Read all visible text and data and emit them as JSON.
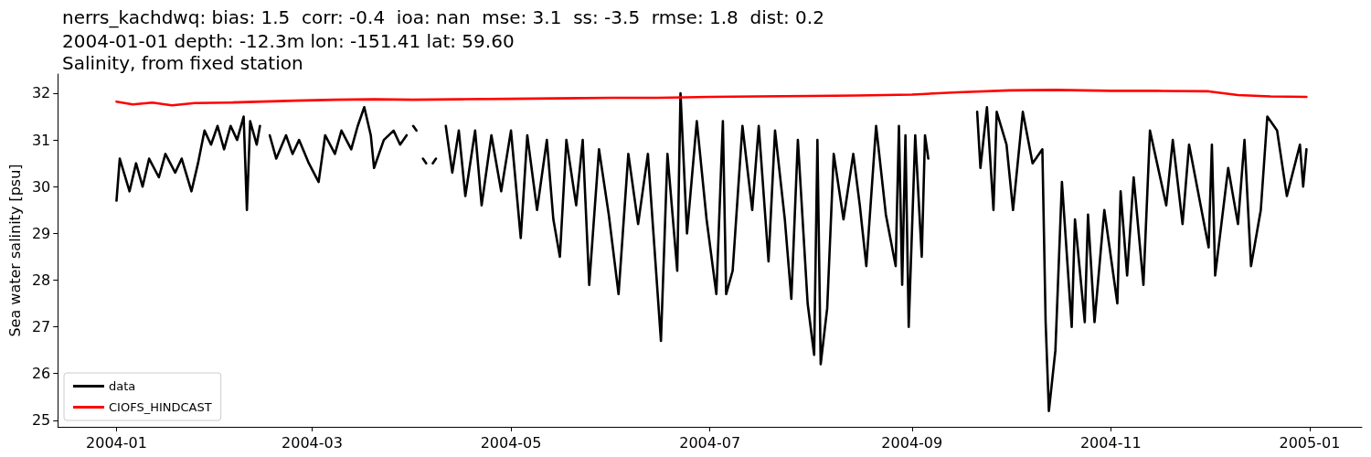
{
  "chart_data": {
    "type": "line",
    "title": "nerrs_kachdwq: bias: 1.5  corr: -0.4  ioa: nan  mse: 3.1  ss: -3.5  rmse: 1.8  dist: 0.2",
    "subtitle": "2004-01-01 depth: -12.3m lon: -151.41 lat: 59.60\nSalinity, from fixed station",
    "ylabel": "Sea water salinity [psu]",
    "xlim": [
      "2003-12-14",
      "2005-01-17"
    ],
    "xticks": [
      {
        "value": "2004-01-01",
        "label": "2004-01"
      },
      {
        "value": "2004-03-01",
        "label": "2004-03"
      },
      {
        "value": "2004-05-01",
        "label": "2004-05"
      },
      {
        "value": "2004-07-01",
        "label": "2004-07"
      },
      {
        "value": "2004-09-01",
        "label": "2004-09"
      },
      {
        "value": "2004-11-01",
        "label": "2004-11"
      },
      {
        "value": "2005-01-01",
        "label": "2005-01"
      }
    ],
    "ylim": [
      24.86,
      32.41
    ],
    "yticks": [
      25,
      26,
      27,
      28,
      29,
      30,
      31,
      32
    ],
    "grid": false,
    "legend": "bottom left",
    "marker": "none",
    "line_style": "solid",
    "series": [
      {
        "name": "data",
        "color": "#000000",
        "x": [
          "2004-01-01",
          "2004-01-02",
          "2004-01-05",
          "2004-01-07",
          "2004-01-09",
          "2004-01-11",
          "2004-01-14",
          "2004-01-16",
          "2004-01-19",
          "2004-01-21",
          "2004-01-24",
          "2004-01-26",
          "2004-01-28",
          "2004-01-30",
          "2004-02-01",
          "2004-02-03",
          "2004-02-05",
          "2004-02-07",
          "2004-02-09",
          "2004-02-10",
          "2004-02-11",
          "2004-02-13",
          "2004-02-14",
          "2004-02-15",
          "2004-02-17",
          "2004-02-19",
          "2004-02-22",
          "2004-02-24",
          "2004-02-26",
          "2004-02-29",
          "2004-03-03",
          "2004-03-05",
          "2004-03-08",
          "2004-03-10",
          "2004-03-13",
          "2004-03-15",
          "2004-03-17",
          "2004-03-19",
          "2004-03-20",
          "2004-03-23",
          "2004-03-26",
          "2004-03-28",
          "2004-03-30",
          "2004-03-31",
          "2004-04-01",
          "2004-04-02",
          "2004-04-03",
          "2004-04-04",
          "2004-04-05",
          "2004-04-06",
          "2004-04-07",
          "2004-04-08",
          "2004-04-09",
          "2004-04-11",
          "2004-04-13",
          "2004-04-15",
          "2004-04-17",
          "2004-04-20",
          "2004-04-22",
          "2004-04-25",
          "2004-04-28",
          "2004-05-01",
          "2004-05-04",
          "2004-05-06",
          "2004-05-09",
          "2004-05-12",
          "2004-05-14",
          "2004-05-16",
          "2004-05-18",
          "2004-05-21",
          "2004-05-23",
          "2004-05-25",
          "2004-05-28",
          "2004-05-31",
          "2004-06-03",
          "2004-06-06",
          "2004-06-09",
          "2004-06-12",
          "2004-06-14",
          "2004-06-16",
          "2004-06-18",
          "2004-06-21",
          "2004-06-22",
          "2004-06-24",
          "2004-06-27",
          "2004-06-30",
          "2004-07-03",
          "2004-07-05",
          "2004-07-06",
          "2004-07-08",
          "2004-07-11",
          "2004-07-14",
          "2004-07-16",
          "2004-07-19",
          "2004-07-21",
          "2004-07-24",
          "2004-07-26",
          "2004-07-28",
          "2004-07-31",
          "2004-08-02",
          "2004-08-03",
          "2004-08-04",
          "2004-08-06",
          "2004-08-08",
          "2004-08-11",
          "2004-08-14",
          "2004-08-16",
          "2004-08-18",
          "2004-08-21",
          "2004-08-24",
          "2004-08-27",
          "2004-08-28",
          "2004-08-29",
          "2004-08-30",
          "2004-08-31",
          "2004-09-02",
          "2004-09-04",
          "2004-09-05",
          "2004-09-06",
          "2004-09-14",
          "2004-09-21",
          "2004-09-22",
          "2004-09-24",
          "2004-09-26",
          "2004-09-27",
          "2004-09-30",
          "2004-10-02",
          "2004-10-05",
          "2004-10-08",
          "2004-10-11",
          "2004-10-12",
          "2004-10-13",
          "2004-10-15",
          "2004-10-17",
          "2004-10-20",
          "2004-10-21",
          "2004-10-24",
          "2004-10-25",
          "2004-10-27",
          "2004-10-30",
          "2004-11-03",
          "2004-11-04",
          "2004-11-06",
          "2004-11-08",
          "2004-11-11",
          "2004-11-13",
          "2004-11-18",
          "2004-11-20",
          "2004-11-23",
          "2004-11-25",
          "2004-12-01",
          "2004-12-02",
          "2004-12-03",
          "2004-12-07",
          "2004-12-10",
          "2004-12-12",
          "2004-12-14",
          "2004-12-17",
          "2004-12-19",
          "2004-12-22",
          "2004-12-25",
          "2004-12-29",
          "2004-12-30",
          "2004-12-31"
        ],
        "values": [
          29.7,
          30.6,
          29.9,
          30.5,
          30.0,
          30.6,
          30.2,
          30.7,
          30.3,
          30.6,
          29.9,
          30.5,
          31.2,
          30.9,
          31.3,
          30.8,
          31.3,
          31.0,
          31.5,
          29.5,
          31.4,
          30.9,
          31.3,
          null,
          31.1,
          30.6,
          31.1,
          30.7,
          31.0,
          30.5,
          30.1,
          31.1,
          30.7,
          31.2,
          30.8,
          31.3,
          31.7,
          31.1,
          30.4,
          31.0,
          31.2,
          30.9,
          31.1,
          null,
          31.3,
          31.2,
          null,
          30.6,
          30.5,
          null,
          30.5,
          30.6,
          null,
          31.3,
          30.3,
          31.2,
          29.8,
          31.2,
          29.6,
          31.1,
          29.9,
          31.2,
          28.9,
          31.1,
          29.5,
          31.0,
          29.3,
          28.5,
          31.0,
          29.6,
          31.0,
          27.9,
          30.8,
          29.4,
          27.7,
          30.7,
          29.2,
          30.7,
          28.7,
          26.7,
          30.7,
          28.2,
          32.0,
          29.0,
          31.4,
          29.3,
          27.7,
          31.4,
          27.7,
          28.2,
          31.3,
          29.5,
          31.3,
          28.4,
          31.2,
          29.3,
          27.6,
          31.0,
          27.5,
          26.4,
          31.0,
          26.2,
          27.4,
          30.7,
          29.3,
          30.7,
          29.6,
          28.3,
          31.3,
          29.4,
          28.3,
          31.3,
          27.9,
          31.1,
          27.0,
          31.1,
          28.5,
          31.1,
          30.6,
          null,
          31.6,
          30.4,
          31.7,
          29.5,
          31.6,
          30.9,
          29.5,
          31.6,
          30.5,
          30.8,
          27.1,
          25.2,
          26.5,
          30.1,
          27.0,
          29.3,
          27.1,
          29.4,
          27.1,
          29.5,
          27.5,
          29.9,
          28.1,
          30.2,
          27.9,
          31.2,
          29.6,
          31.0,
          29.2,
          30.9,
          28.7,
          30.9,
          28.1,
          30.4,
          29.2,
          31.0,
          28.3,
          29.5,
          31.5,
          31.2,
          29.8,
          30.9,
          30.0,
          30.8
        ]
      },
      {
        "name": "CIOFS_HINDCAST",
        "color": "#ff0000",
        "x": [
          "2004-01-01",
          "2004-01-06",
          "2004-01-12",
          "2004-01-18",
          "2004-01-25",
          "2004-02-05",
          "2004-02-15",
          "2004-02-25",
          "2004-03-08",
          "2004-03-20",
          "2004-04-01",
          "2004-04-15",
          "2004-05-01",
          "2004-05-15",
          "2004-06-01",
          "2004-06-15",
          "2004-07-01",
          "2004-07-15",
          "2004-08-01",
          "2004-08-15",
          "2004-09-01",
          "2004-09-15",
          "2004-10-01",
          "2004-10-15",
          "2004-11-01",
          "2004-11-15",
          "2004-12-01",
          "2004-12-10",
          "2004-12-20",
          "2004-12-31"
        ],
        "values": [
          31.82,
          31.76,
          31.8,
          31.74,
          31.79,
          31.8,
          31.82,
          31.84,
          31.86,
          31.87,
          31.86,
          31.87,
          31.88,
          31.89,
          31.9,
          31.9,
          31.92,
          31.93,
          31.94,
          31.95,
          31.97,
          32.02,
          32.06,
          32.07,
          32.05,
          32.05,
          32.04,
          31.96,
          31.93,
          31.92
        ]
      }
    ]
  }
}
